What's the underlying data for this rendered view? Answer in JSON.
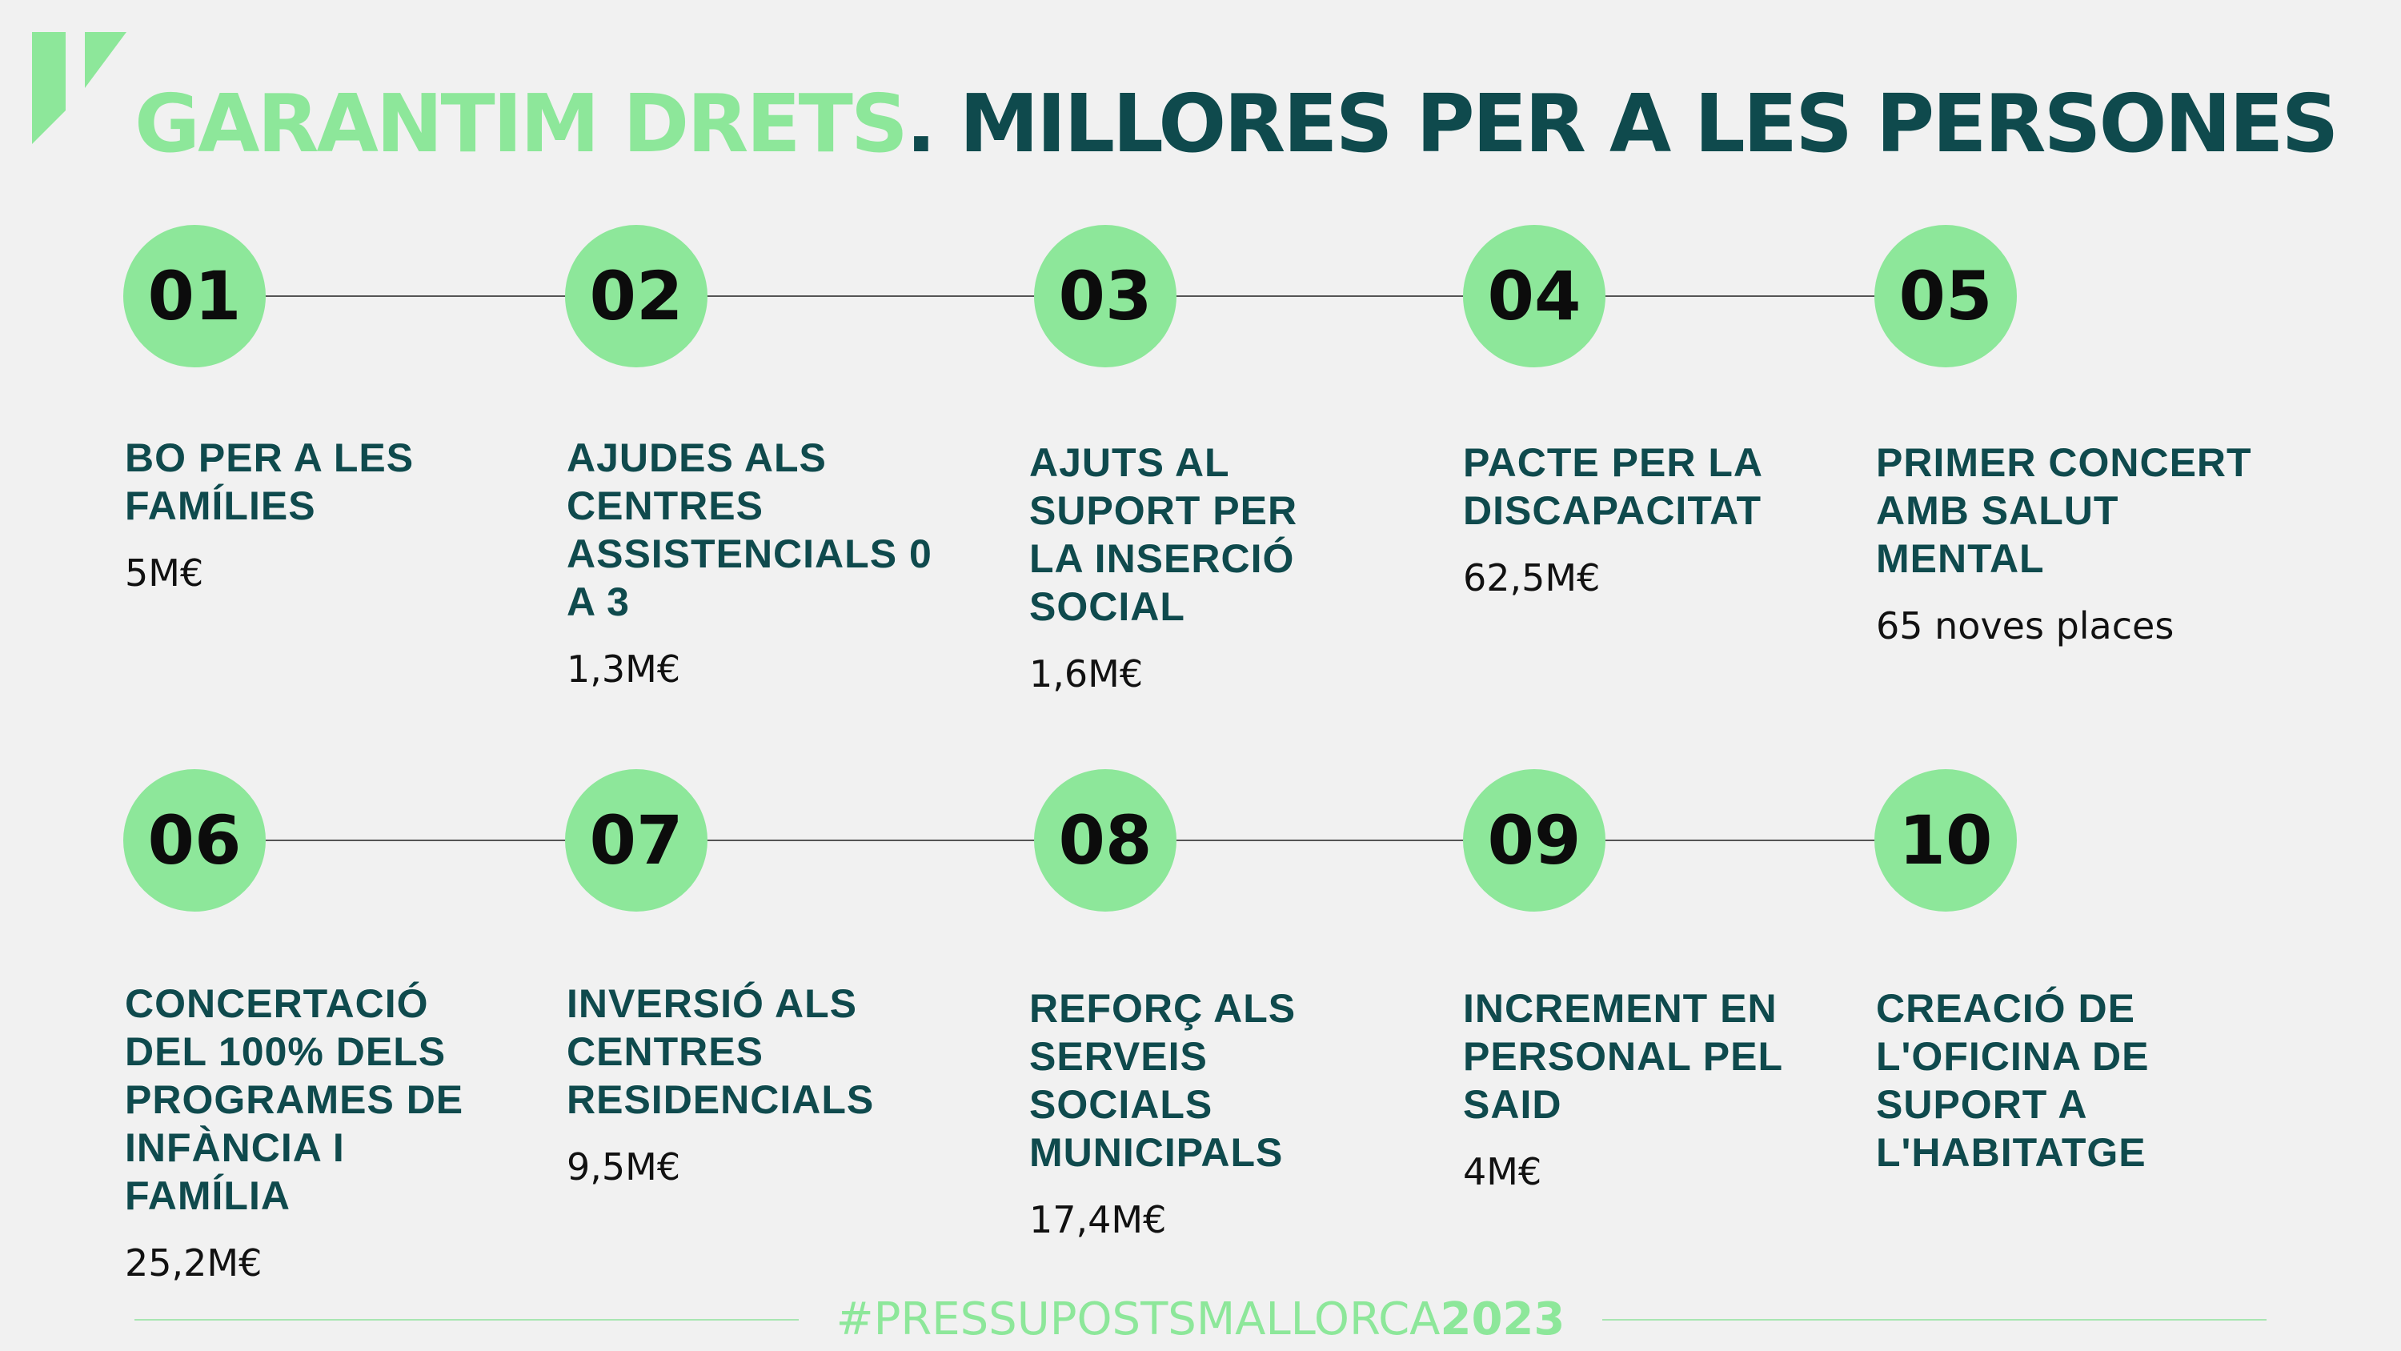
{
  "header": {
    "title_accent": "GARANTIM DRETS",
    "title_main": ". MILLORES PER A LES PERSONES"
  },
  "colors": {
    "accent": "#8de79a",
    "dark_teal": "#0f4a4d",
    "background": "#f1f1f1"
  },
  "items": [
    {
      "number": "01",
      "title": "BO PER A LES FAMÍLIES",
      "value": "5M€"
    },
    {
      "number": "02",
      "title": "AJUDES ALS CENTRES ASSISTENCIALS 0 A 3",
      "value": "1,3M€"
    },
    {
      "number": "03",
      "title": "AJUTS AL SUPORT PER LA INSERCIÓ SOCIAL",
      "value": "1,6M€"
    },
    {
      "number": "04",
      "title": "PACTE PER LA DISCAPACITAT",
      "value": "62,5M€"
    },
    {
      "number": "05",
      "title": "PRIMER CONCERT AMB SALUT MENTAL",
      "value": "65 noves places"
    },
    {
      "number": "06",
      "title": "CONCERTACIÓ DEL 100% DELS PROGRAMES DE INFÀNCIA I FAMÍLIA",
      "value": "25,2M€"
    },
    {
      "number": "07",
      "title": "INVERSIÓ ALS CENTRES RESIDENCIALS",
      "value": "9,5M€"
    },
    {
      "number": "08",
      "title": "REFORÇ ALS SERVEIS SOCIALS MUNICIPALS",
      "value": "17,4M€"
    },
    {
      "number": "09",
      "title": "INCREMENT EN PERSONAL PEL SAID",
      "value": "4M€"
    },
    {
      "number": "10",
      "title": "CREACIÓ DE L'OFICINA DE SUPORT A L'HABITATGE",
      "value": ""
    }
  ],
  "footer": {
    "hashtag": "#PRESSUPOSTSMALLORCA",
    "year": "2023"
  }
}
